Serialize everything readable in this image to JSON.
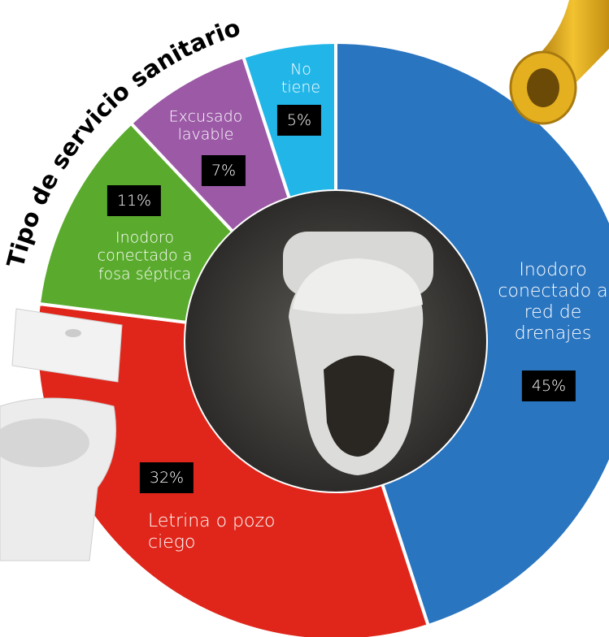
{
  "chart_data": {
    "type": "donut",
    "title": "Tipo de servicio sanitario",
    "categories": [
      "Inodoro conectado a red de drenajes",
      "Letrina o pozo ciego",
      "Inodoro conectado a fosa séptica",
      "Excusado lavable",
      "No tiene"
    ],
    "values": [
      45,
      32,
      11,
      7,
      5
    ],
    "value_labels": [
      "45%",
      "32%",
      "11%",
      "7%",
      "5%"
    ],
    "colors": [
      "#2a75c0",
      "#e0261a",
      "#5aab2d",
      "#9b59a6",
      "#22b6e8"
    ]
  }
}
